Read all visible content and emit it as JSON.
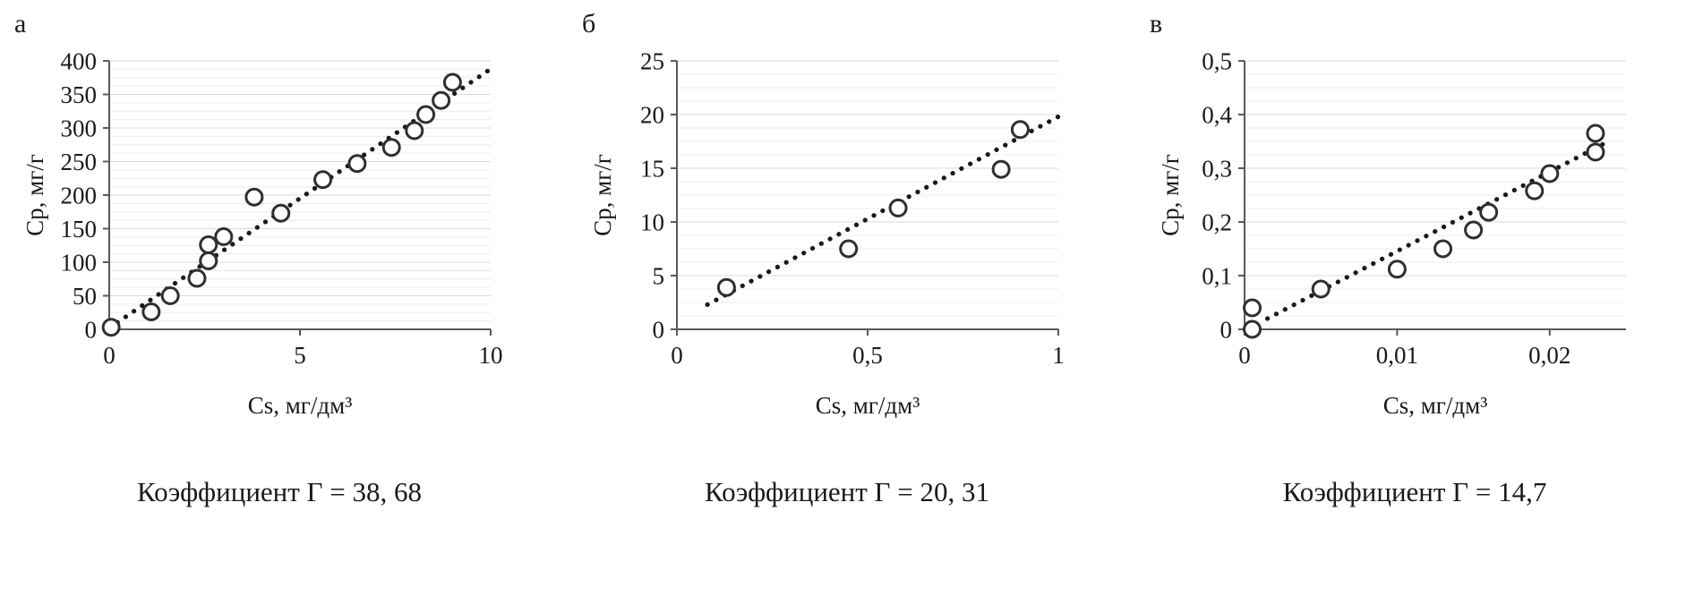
{
  "page": {
    "background": "#ffffff",
    "text_color": "#1a1a1a",
    "axis_color": "#595959",
    "major_grid_color": "#d9d9d9",
    "minor_grid_color": "#ececec",
    "marker_stroke_color": "#2f2f2f",
    "trendline_color": "#1a1a1a"
  },
  "chart_data": [
    {
      "type": "scatter",
      "panel_label": "а",
      "caption": "Коэффициент Г = 38, 68",
      "xlabel": "Cs, мг/дм³",
      "ylabel": "Cp, мг/г",
      "xlim": [
        0,
        10
      ],
      "ylim": [
        0,
        400
      ],
      "x_tick_values": [
        0,
        5,
        10
      ],
      "x_tick_labels": [
        "0",
        "5",
        "10"
      ],
      "y_tick_values": [
        0,
        50,
        100,
        150,
        200,
        250,
        300,
        350,
        400
      ],
      "y_tick_labels": [
        "0",
        "50",
        "100",
        "150",
        "200",
        "250",
        "300",
        "350",
        "400"
      ],
      "y_minor_step": 12.5,
      "grid": "horizontal major+minor",
      "legend": "none",
      "points": [
        [
          0.05,
          3
        ],
        [
          1.1,
          26
        ],
        [
          1.6,
          50
        ],
        [
          2.3,
          76
        ],
        [
          2.6,
          102
        ],
        [
          2.6,
          126
        ],
        [
          3.0,
          138
        ],
        [
          3.8,
          197
        ],
        [
          4.5,
          173
        ],
        [
          5.6,
          223
        ],
        [
          6.5,
          247
        ],
        [
          7.4,
          271
        ],
        [
          8.0,
          296
        ],
        [
          8.3,
          320
        ],
        [
          8.7,
          341
        ],
        [
          9.0,
          368
        ]
      ],
      "trendline": {
        "x1": 0,
        "y1": 2,
        "x2": 10,
        "y2": 388
      }
    },
    {
      "type": "scatter",
      "panel_label": "б",
      "caption": "Коэффициент Г = 20, 31",
      "xlabel": "Cs, мг/дм³",
      "ylabel": "Cp, мг/г",
      "xlim": [
        0,
        1
      ],
      "ylim": [
        0,
        25
      ],
      "x_tick_values": [
        0,
        0.5,
        1
      ],
      "x_tick_labels": [
        "0",
        "0,5",
        "1"
      ],
      "y_tick_values": [
        0,
        5,
        10,
        15,
        20,
        25
      ],
      "y_tick_labels": [
        "0",
        "5",
        "10",
        "15",
        "20",
        "25"
      ],
      "y_minor_step": 1.25,
      "grid": "horizontal major+minor",
      "legend": "none",
      "points": [
        [
          0.13,
          3.9
        ],
        [
          0.45,
          7.5
        ],
        [
          0.58,
          11.3
        ],
        [
          0.85,
          14.9
        ],
        [
          0.9,
          18.6
        ]
      ],
      "trendline": {
        "x1": 0.08,
        "y1": 2.3,
        "x2": 1,
        "y2": 19.8
      }
    },
    {
      "type": "scatter",
      "panel_label": "в",
      "caption": "Коэффициент Г = 14,7",
      "xlabel": "Cs, мг/дм³",
      "ylabel": "Cp, мг/г",
      "xlim": [
        0,
        0.025
      ],
      "ylim": [
        0,
        0.5
      ],
      "x_tick_values": [
        0,
        0.01,
        0.02
      ],
      "x_tick_labels": [
        "0",
        "0,01",
        "0,02"
      ],
      "y_tick_values": [
        0,
        0.1,
        0.2,
        0.3,
        0.4,
        0.5
      ],
      "y_tick_labels": [
        "0",
        "0,1",
        "0,2",
        "0,3",
        "0,4",
        "0,5"
      ],
      "y_minor_step": 0.025,
      "grid": "horizontal major+minor",
      "legend": "none",
      "points": [
        [
          0.0005,
          0.0
        ],
        [
          0.0005,
          0.04
        ],
        [
          0.005,
          0.075
        ],
        [
          0.01,
          0.112
        ],
        [
          0.013,
          0.15
        ],
        [
          0.015,
          0.185
        ],
        [
          0.016,
          0.218
        ],
        [
          0.019,
          0.258
        ],
        [
          0.02,
          0.29
        ],
        [
          0.023,
          0.33
        ],
        [
          0.023,
          0.365
        ]
      ],
      "trendline": {
        "x1": 0.0015,
        "y1": 0.02,
        "x2": 0.0235,
        "y2": 0.345
      }
    }
  ]
}
